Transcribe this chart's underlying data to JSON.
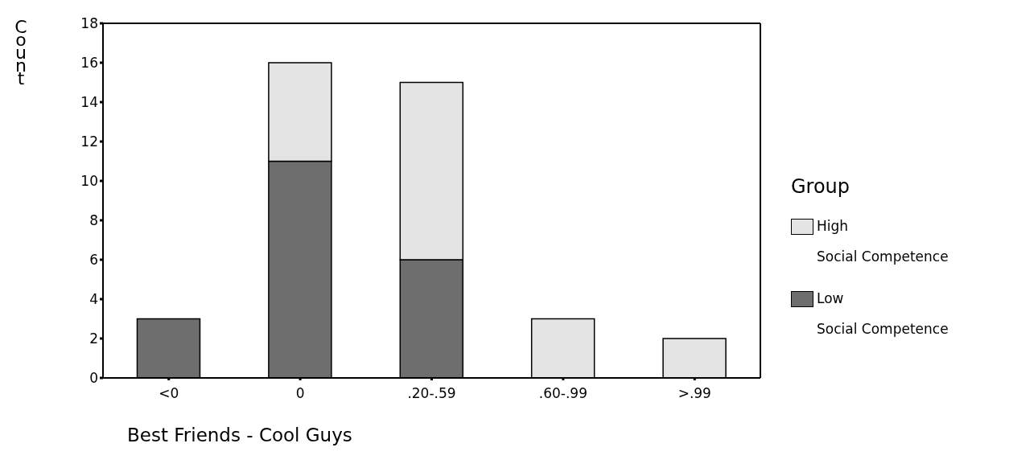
{
  "chart_data": {
    "type": "bar",
    "stacked": true,
    "xlabel": "Best Friends - Cool Guys",
    "ylabel": "Count",
    "legend_title": "Group",
    "legend": "right",
    "categories": [
      "<0",
      "0",
      ".20-.59",
      ".60-.99",
      ">.99"
    ],
    "series": [
      {
        "name": "Low\nSocial Competence",
        "color": "#6e6e6e",
        "values": [
          3,
          11,
          6,
          0,
          0
        ]
      },
      {
        "name": "High\nSocial Competence",
        "color": "#e4e4e4",
        "values": [
          0,
          5,
          9,
          3,
          2
        ]
      }
    ],
    "ylim": [
      0,
      18
    ],
    "yticks": [
      0,
      2,
      4,
      6,
      8,
      10,
      12,
      14,
      16,
      18
    ],
    "grid": false
  }
}
